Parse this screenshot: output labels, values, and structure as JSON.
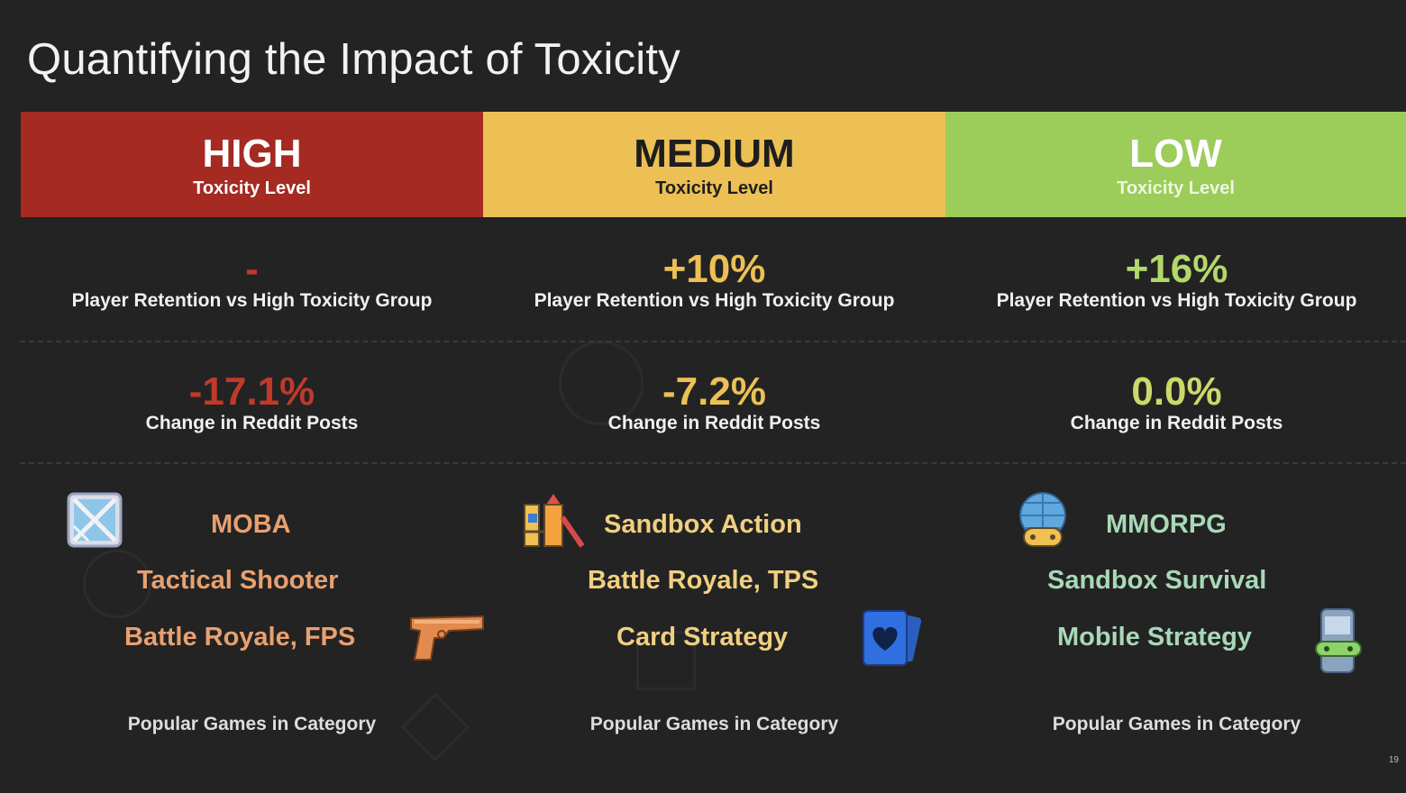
{
  "title": "Quantifying the Impact of Toxicity",
  "colors": {
    "high": "#a52a22",
    "medium": "#ecc054",
    "low": "#9ccc5a"
  },
  "columns": [
    {
      "level": "HIGH",
      "level_sub": "Toxicity Level",
      "retention_value": "-",
      "retention_label": "Player Retention vs High Toxicity Group",
      "reddit_value": "-17.1%",
      "reddit_label": "Change in Reddit Posts",
      "genres": [
        "MOBA",
        "Tactical Shooter",
        "Battle Royale, FPS"
      ],
      "footer": "Popular Games in Category",
      "icons": [
        "map-icon",
        "pistol-icon"
      ]
    },
    {
      "level": "MEDIUM",
      "level_sub": "Toxicity Level",
      "retention_value": "+10%",
      "retention_label": "Player Retention vs High Toxicity Group",
      "reddit_value": "-7.2%",
      "reddit_label": "Change in Reddit Posts",
      "genres": [
        "Sandbox Action",
        "Battle Royale, TPS",
        "Card Strategy"
      ],
      "footer": "Popular Games in Category",
      "icons": [
        "playground-icon",
        "playing-card-icon"
      ]
    },
    {
      "level": "LOW",
      "level_sub": "Toxicity Level",
      "retention_value": "+16%",
      "retention_label": "Player Retention vs High Toxicity Group",
      "reddit_value": "0.0%",
      "reddit_label": "Change in Reddit Posts",
      "genres": [
        "MMORPG",
        "Sandbox Survival",
        "Mobile Strategy"
      ],
      "footer": "Popular Games in Category",
      "icons": [
        "globe-gamepad-icon",
        "mobile-gamepad-icon"
      ]
    }
  ],
  "page_number": "19"
}
